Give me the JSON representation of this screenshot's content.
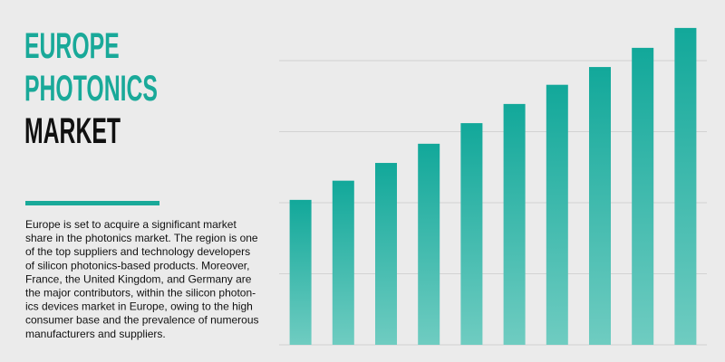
{
  "title_lines": [
    "EUROPE",
    "PHOTONICS",
    "MARKET"
  ],
  "title_colors": [
    "#19a999",
    "#19a999",
    "#111111"
  ],
  "rule_color": "#19a999",
  "body_lines": [
    "Europe is set to acquire a significant market",
    "share in the photonics market. The region is one",
    "of the top suppliers and technology developers",
    "of silicon photonics-based products. Moreover,",
    "France, the United Kingdom, and Germany are",
    "the major contributors, within the silicon photon-",
    "ics devices market in Europe, owing to the high",
    "consumer base and the prevalence of numerous",
    "manufacturers and suppliers."
  ],
  "chart_data": {
    "type": "bar",
    "categories": [
      null,
      null,
      null,
      null,
      null,
      null,
      null,
      null,
      null,
      null
    ],
    "values": [
      2.04,
      2.31,
      2.56,
      2.83,
      3.12,
      3.39,
      3.66,
      3.91,
      4.18,
      4.46
    ],
    "color": "#12a89a",
    "color_bottom": "#6fccc1",
    "ylim": [
      0,
      4.5
    ],
    "yticks": [
      0,
      1,
      2,
      3,
      4
    ],
    "grid": true
  }
}
